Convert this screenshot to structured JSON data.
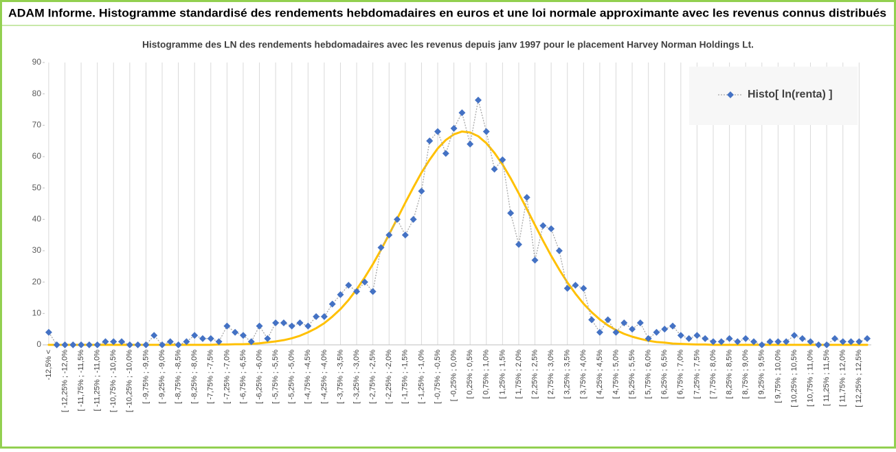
{
  "header": {
    "title": "ADAM Informe. Histogramme standardisé des rendements hebdomadaires en euros et une loi normale approximante avec les revenus connus distribués"
  },
  "chart_data": {
    "type": "line",
    "title": "Histogramme des LN des rendements hebdomadaires avec les revenus depuis janv 1997 pour le placement Harvey Norman Holdings Lt.",
    "categories": [
      "-12,5% <",
      null,
      "[ -12,25% ; -12,0%",
      null,
      "[ -11,75% ; -11,5%",
      null,
      "[ -11,25% ; -11,0%",
      null,
      "[ -10,75% ; -10,5%",
      null,
      "[ -10,25% ; -10,0%",
      null,
      "[ -9,75% ; -9,5%",
      null,
      "[ -9,25% ; -9,0%",
      null,
      "[ -8,75% ; -8,5%",
      null,
      "[ -8,25% ; -8,0%",
      null,
      "[ -7,75% ; -7,5%",
      null,
      "[ -7,25% ; -7,0%",
      null,
      "[ -6,75% ; -6,5%",
      null,
      "[ -6,25% ; -6,0%",
      null,
      "[ -5,75% ; -5,5%",
      null,
      "[ -5,25% ; -5,0%",
      null,
      "[ -4,75% ; -4,5%",
      null,
      "[ -4,25% ; -4,0%",
      null,
      "[ -3,75% ; -3,5%",
      null,
      "[ -3,25% ; -3,0%",
      null,
      "[ -2,75% ; -2,5%",
      null,
      "[ -2,25% ; -2,0%",
      null,
      "[ -1,75% ; -1,5%",
      null,
      "[ -1,25% ; -1,0%",
      null,
      "[ -0,75% ; -0,5%",
      null,
      "[ -0,25% ; 0,0%",
      null,
      "[ 0,25% ; 0,5%",
      null,
      "[ 0,75% ; 1,0%",
      null,
      "[ 1,25% ; 1,5%",
      null,
      "[ 1,75% ; 2,0%",
      null,
      "[ 2,25% ; 2,5%",
      null,
      "[ 2,75% ; 3,0%",
      null,
      "[ 3,25% ; 3,5%",
      null,
      "[ 3,75% ; 4,0%",
      null,
      "[ 4,25% ; 4,5%",
      null,
      "[ 4,75% ; 5,0%",
      null,
      "[ 5,25% ; 5,5%",
      null,
      "[ 5,75% ; 6,0%",
      null,
      "[ 6,25% ; 6,5%",
      null,
      "[ 6,75% ; 7,0%",
      null,
      "[ 7,25% ; 7,5%",
      null,
      "[ 7,75% ; 8,0%",
      null,
      "[ 8,25% ; 8,5%",
      null,
      "[ 8,75% ; 9,0%",
      null,
      "[ 9,25% ; 9,5%",
      null,
      "[ 9,75% ; 10,0%",
      null,
      "[ 10,25% ; 10,5%",
      null,
      "[ 10,75% ; 11,0%",
      null,
      "[ 11,25% ; 11,5%",
      null,
      "[ 11,75% ; 12,0%",
      null,
      "[ 12,25% ; 12,5%",
      null
    ],
    "series": [
      {
        "name": "Histo[ ln(renta) ]",
        "color": "#4472c4",
        "line_color": "#a5a5a5",
        "marker": "diamond",
        "values": [
          4,
          0,
          0,
          0,
          0,
          0,
          0,
          1,
          1,
          1,
          0,
          0,
          0,
          3,
          0,
          1,
          0,
          1,
          3,
          2,
          2,
          1,
          6,
          4,
          3,
          1,
          6,
          2,
          7,
          7,
          6,
          7,
          6,
          9,
          9,
          13,
          16,
          19,
          17,
          20,
          17,
          31,
          35,
          40,
          35,
          40,
          49,
          65,
          68,
          61,
          69,
          74,
          64,
          78,
          68,
          56,
          59,
          42,
          32,
          47,
          27,
          38,
          37,
          30,
          18,
          19,
          18,
          8,
          4,
          8,
          4,
          7,
          5,
          7,
          2,
          4,
          5,
          6,
          3,
          2,
          3,
          2,
          1,
          1,
          2,
          1,
          2,
          1,
          0,
          1,
          1,
          1,
          3,
          2,
          1,
          0,
          0,
          2,
          1,
          1,
          1,
          2
        ]
      },
      {
        "color": "#ffc000",
        "marker": "none",
        "values": [
          0,
          0,
          0,
          0,
          0,
          0,
          0,
          0,
          0,
          0,
          0,
          0,
          0,
          0,
          0,
          0,
          0,
          0,
          0,
          0,
          0,
          0.1,
          0.1,
          0.2,
          0.2,
          0.3,
          0.5,
          0.8,
          1.1,
          1.5,
          2.1,
          2.9,
          4.0,
          5.3,
          6.9,
          9.0,
          11.4,
          14.3,
          17.7,
          21.5,
          25.7,
          30.3,
          35.2,
          40.2,
          45.3,
          50.2,
          54.9,
          59.0,
          62.6,
          65.3,
          67.1,
          68.0,
          67.7,
          66.5,
          64.3,
          61.2,
          57.5,
          53.1,
          48.3,
          43.3,
          38.2,
          33.2,
          28.4,
          24.0,
          19.9,
          16.3,
          13.1,
          10.4,
          8.1,
          6.2,
          4.7,
          3.5,
          2.6,
          1.9,
          1.3,
          0.9,
          0.7,
          0.4,
          0.3,
          0.2,
          0.1,
          0.1,
          0,
          0,
          0,
          0,
          0,
          0,
          0,
          0,
          0,
          0,
          0,
          0,
          0,
          0,
          0,
          0,
          0,
          0,
          0,
          0
        ]
      }
    ],
    "ylim": [
      0,
      90
    ],
    "yticks": [
      0,
      10,
      20,
      30,
      40,
      50,
      60,
      70,
      80,
      90
    ],
    "grid": true,
    "legend": "top-right"
  }
}
